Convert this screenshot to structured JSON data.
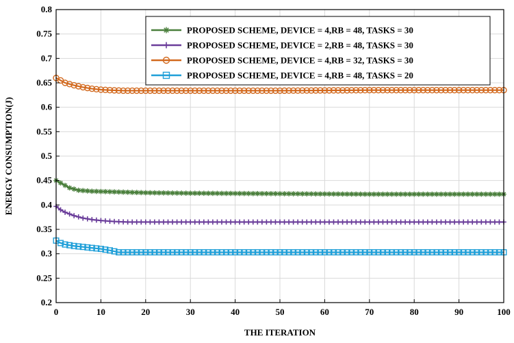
{
  "chart_data": {
    "type": "line",
    "title": "",
    "xlabel": "THE ITERATION",
    "ylabel": "ENERGY CONSUMPTION(J)",
    "xlim": [
      0,
      100
    ],
    "ylim": [
      0.2,
      0.8
    ],
    "x_ticks": [
      0,
      10,
      20,
      30,
      40,
      50,
      60,
      70,
      80,
      90,
      100
    ],
    "y_ticks": [
      0.2,
      0.25,
      0.3,
      0.35,
      0.4,
      0.45,
      0.5,
      0.55,
      0.6,
      0.65,
      0.7,
      0.75,
      0.8
    ],
    "x_tick_labels": [
      "0",
      "10",
      "20",
      "30",
      "40",
      "50",
      "60",
      "70",
      "80",
      "90",
      "100"
    ],
    "y_tick_labels": [
      "0.2",
      "0.25",
      "0.3",
      "0.35",
      "0.4",
      "0.45",
      "0.5",
      "0.55",
      "0.6",
      "0.65",
      "0.7",
      "0.75",
      "0.8"
    ],
    "grid": true,
    "legend_position": "top-right",
    "series": [
      {
        "name": "PROPOSED SCHEME, DEVICE = 4,RB = 48, TASKS = 30",
        "color": "#4a7f3c",
        "marker": "asterisk",
        "x": [
          0,
          1,
          2,
          3,
          5,
          8,
          12,
          20,
          30,
          50,
          70,
          100
        ],
        "y": [
          0.45,
          0.445,
          0.44,
          0.435,
          0.43,
          0.428,
          0.427,
          0.425,
          0.424,
          0.423,
          0.422,
          0.422
        ]
      },
      {
        "name": "PROPOSED SCHEME, DEVICE = 2,RB = 48, TASKS = 30",
        "color": "#6a3d9a",
        "marker": "plus",
        "x": [
          0,
          1,
          2,
          4,
          6,
          8,
          10,
          13,
          16,
          20,
          30,
          50,
          100
        ],
        "y": [
          0.397,
          0.39,
          0.385,
          0.378,
          0.373,
          0.37,
          0.368,
          0.366,
          0.365,
          0.365,
          0.365,
          0.365,
          0.365
        ]
      },
      {
        "name": "PROPOSED SCHEME, DEVICE = 4,RB = 32, TASKS = 30",
        "color": "#d2691e",
        "marker": "circle",
        "x": [
          0,
          1,
          2,
          4,
          6,
          8,
          10,
          12,
          15,
          20,
          30,
          50,
          70,
          100
        ],
        "y": [
          0.66,
          0.655,
          0.65,
          0.645,
          0.641,
          0.638,
          0.636,
          0.635,
          0.634,
          0.634,
          0.634,
          0.634,
          0.635,
          0.635
        ]
      },
      {
        "name": "PROPOSED SCHEME, DEVICE = 4,RB = 48, TASKS = 20",
        "color": "#1f9fd8",
        "marker": "square",
        "x": [
          0,
          1,
          2,
          4,
          6,
          8,
          10,
          12,
          14,
          20,
          30,
          50,
          70,
          100
        ],
        "y": [
          0.327,
          0.322,
          0.319,
          0.316,
          0.314,
          0.312,
          0.31,
          0.307,
          0.303,
          0.303,
          0.303,
          0.303,
          0.303,
          0.303
        ]
      }
    ]
  }
}
